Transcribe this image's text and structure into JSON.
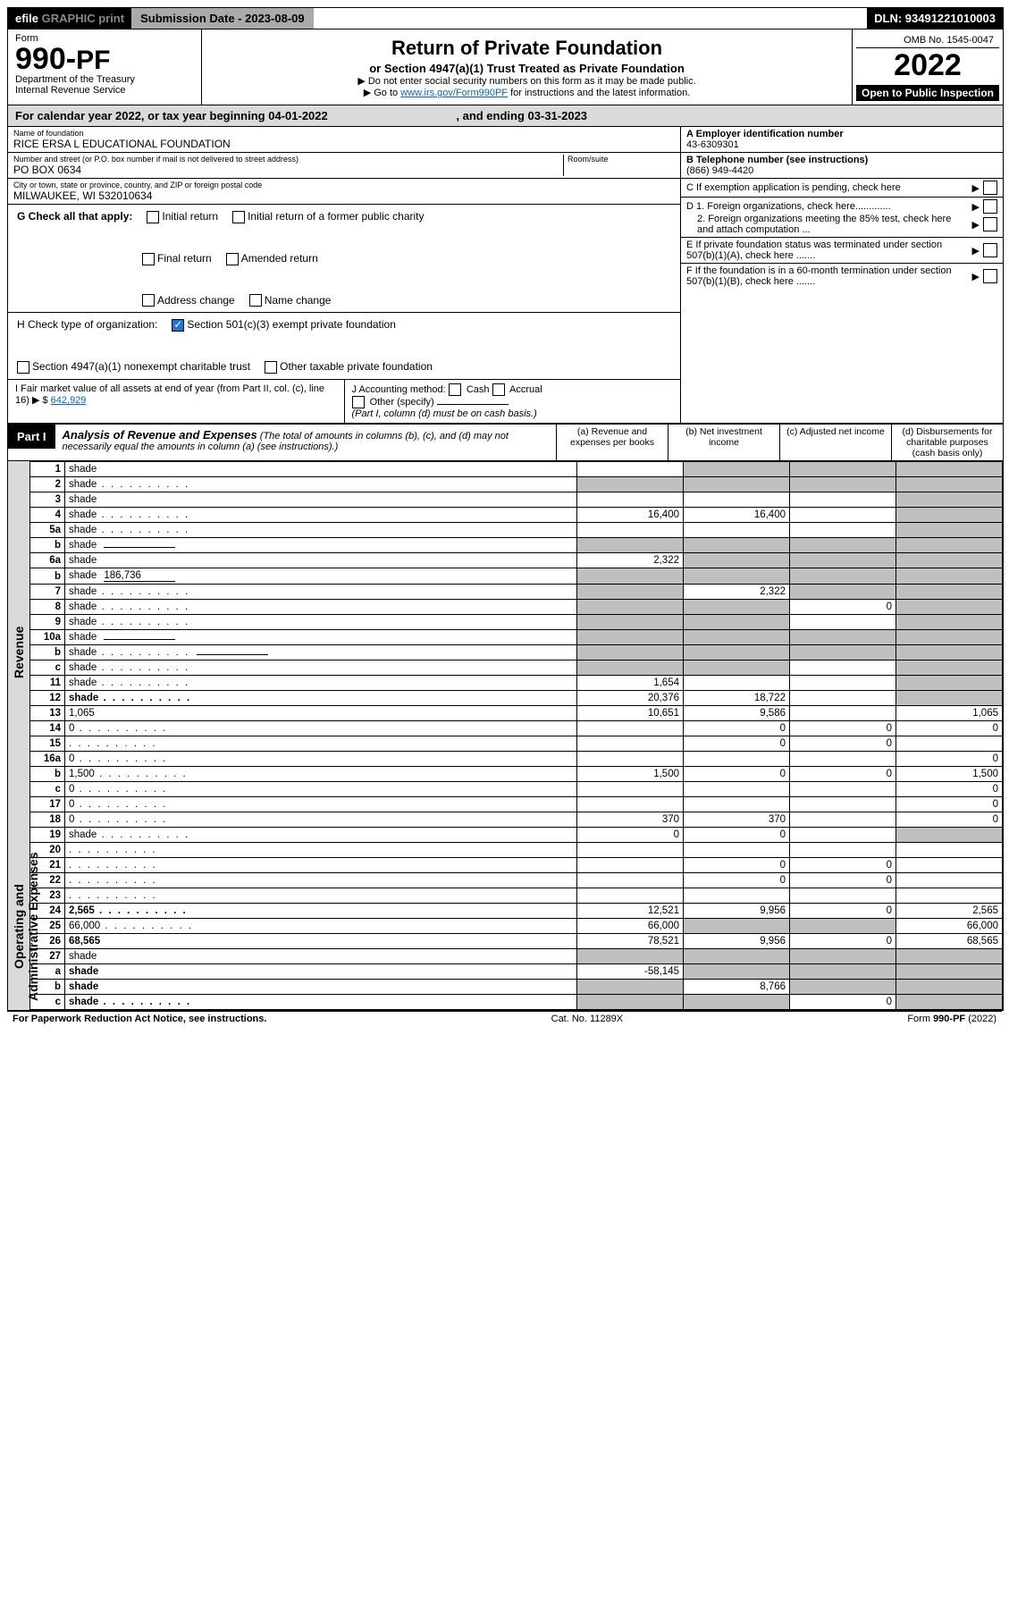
{
  "topbar": {
    "efile_prefix": "efile",
    "efile_suffix": "GRAPHIC print",
    "submission_label": "Submission Date - 2023-08-09",
    "dln": "DLN: 93491221010003"
  },
  "header": {
    "form_word": "Form",
    "form_no_a": "990-",
    "form_no_b": "PF",
    "dept1": "Department of the Treasury",
    "dept2": "Internal Revenue Service",
    "title": "Return of Private Foundation",
    "subtitle": "or Section 4947(a)(1) Trust Treated as Private Foundation",
    "note1": "▶ Do not enter social security numbers on this form as it may be made public.",
    "note2_pre": "▶ Go to ",
    "note2_link": "www.irs.gov/Form990PF",
    "note2_post": " for instructions and the latest information.",
    "omb": "OMB No. 1545-0047",
    "year": "2022",
    "open": "Open to Public Inspection"
  },
  "calyear": {
    "pre": "For calendar year 2022, or tax year beginning ",
    "begin": "04-01-2022",
    "mid": " , and ending ",
    "end": "03-31-2023"
  },
  "info": {
    "name_label": "Name of foundation",
    "name": "RICE ERSA L EDUCATIONAL FOUNDATION",
    "street_label": "Number and street (or P.O. box number if mail is not delivered to street address)",
    "street": "PO BOX 0634",
    "room_label": "Room/suite",
    "city_label": "City or town, state or province, country, and ZIP or foreign postal code",
    "city": "MILWAUKEE, WI  532010634",
    "a_label": "A Employer identification number",
    "a_val": "43-6309301",
    "b_label": "B Telephone number (see instructions)",
    "b_val": "(866) 949-4420",
    "c_label": "C If exemption application is pending, check here",
    "d1": "D 1. Foreign organizations, check here.............",
    "d2": "2. Foreign organizations meeting the 85% test, check here and attach computation ...",
    "e": "E If private foundation status was terminated under section 507(b)(1)(A), check here .......",
    "f": "F If the foundation is in a 60-month termination under section 507(b)(1)(B), check here .......",
    "g_label": "G Check all that apply:",
    "g_opts": [
      "Initial return",
      "Final return",
      "Address change",
      "Initial return of a former public charity",
      "Amended return",
      "Name change"
    ],
    "h_label": "H Check type of organization:",
    "h_501": "Section 501(c)(3) exempt private foundation",
    "h_4947": "Section 4947(a)(1) nonexempt charitable trust",
    "h_other": "Other taxable private foundation",
    "i_label": "I Fair market value of all assets at end of year (from Part II, col. (c), line 16)",
    "i_val": "642,929",
    "j_label": "J Accounting method:",
    "j_cash": "Cash",
    "j_accrual": "Accrual",
    "j_other": "Other (specify)",
    "j_note": "(Part I, column (d) must be on cash basis.)"
  },
  "part1": {
    "label": "Part I",
    "title": "Analysis of Revenue and Expenses",
    "title_note": "(The total of amounts in columns (b), (c), and (d) may not necessarily equal the amounts in column (a) (see instructions).)",
    "col_a": "(a) Revenue and expenses per books",
    "col_b": "(b) Net investment income",
    "col_c": "(c) Adjusted net income",
    "col_d": "(d) Disbursements for charitable purposes (cash basis only)",
    "side_rev": "Revenue",
    "side_exp": "Operating and Administrative Expenses"
  },
  "rows": [
    {
      "n": "1",
      "d": "shade",
      "a": "",
      "b": "shade",
      "c": "shade"
    },
    {
      "n": "2",
      "d": "shade",
      "a": "shade",
      "b": "shade",
      "c": "shade",
      "dotted": true
    },
    {
      "n": "3",
      "d": "shade",
      "a": "",
      "b": "",
      "c": ""
    },
    {
      "n": "4",
      "d": "shade",
      "a": "16,400",
      "b": "16,400",
      "c": "",
      "dotted": true
    },
    {
      "n": "5a",
      "d": "shade",
      "a": "",
      "b": "",
      "c": "",
      "dotted": true
    },
    {
      "n": "b",
      "d": "shade",
      "a": "shade",
      "b": "shade",
      "c": "shade",
      "inline": true
    },
    {
      "n": "6a",
      "d": "shade",
      "a": "2,322",
      "b": "shade",
      "c": "shade"
    },
    {
      "n": "b",
      "d": "shade",
      "a": "shade",
      "b": "shade",
      "c": "shade",
      "inline": true,
      "inline_val": "186,736"
    },
    {
      "n": "7",
      "d": "shade",
      "a": "shade",
      "b": "2,322",
      "c": "shade",
      "dotted": true
    },
    {
      "n": "8",
      "d": "shade",
      "a": "shade",
      "b": "shade",
      "c": "0",
      "dotted": true
    },
    {
      "n": "9",
      "d": "shade",
      "a": "shade",
      "b": "shade",
      "c": "",
      "dotted": true
    },
    {
      "n": "10a",
      "d": "shade",
      "a": "shade",
      "b": "shade",
      "c": "shade",
      "inline": true
    },
    {
      "n": "b",
      "d": "shade",
      "a": "shade",
      "b": "shade",
      "c": "shade",
      "inline": true,
      "dotted": true
    },
    {
      "n": "c",
      "d": "shade",
      "a": "shade",
      "b": "shade",
      "c": "",
      "dotted": true
    },
    {
      "n": "11",
      "d": "shade",
      "a": "1,654",
      "b": "",
      "c": "",
      "dotted": true
    },
    {
      "n": "12",
      "d": "shade",
      "a": "20,376",
      "b": "18,722",
      "c": "",
      "bold": true,
      "dotted": true
    },
    {
      "n": "13",
      "d": "1,065",
      "a": "10,651",
      "b": "9,586",
      "c": ""
    },
    {
      "n": "14",
      "d": "0",
      "a": "",
      "b": "0",
      "c": "0",
      "dotted": true
    },
    {
      "n": "15",
      "d": "",
      "a": "",
      "b": "0",
      "c": "0",
      "dotted": true
    },
    {
      "n": "16a",
      "d": "0",
      "a": "",
      "b": "",
      "c": "",
      "dotted": true
    },
    {
      "n": "b",
      "d": "1,500",
      "a": "1,500",
      "b": "0",
      "c": "0",
      "dotted": true
    },
    {
      "n": "c",
      "d": "0",
      "a": "",
      "b": "",
      "c": "",
      "dotted": true
    },
    {
      "n": "17",
      "d": "0",
      "a": "",
      "b": "",
      "c": "",
      "dotted": true
    },
    {
      "n": "18",
      "d": "0",
      "a": "370",
      "b": "370",
      "c": "",
      "dotted": true
    },
    {
      "n": "19",
      "d": "shade",
      "a": "0",
      "b": "0",
      "c": "",
      "dotted": true
    },
    {
      "n": "20",
      "d": "",
      "a": "",
      "b": "",
      "c": "",
      "dotted": true
    },
    {
      "n": "21",
      "d": "",
      "a": "",
      "b": "0",
      "c": "0",
      "dotted": true
    },
    {
      "n": "22",
      "d": "",
      "a": "",
      "b": "0",
      "c": "0",
      "dotted": true
    },
    {
      "n": "23",
      "d": "",
      "a": "",
      "b": "",
      "c": "",
      "dotted": true
    },
    {
      "n": "24",
      "d": "2,565",
      "a": "12,521",
      "b": "9,956",
      "c": "0",
      "bold": true,
      "dotted": true
    },
    {
      "n": "25",
      "d": "66,000",
      "a": "66,000",
      "b": "shade",
      "c": "shade",
      "dotted": true
    },
    {
      "n": "26",
      "d": "68,565",
      "a": "78,521",
      "b": "9,956",
      "c": "0",
      "bold": true
    },
    {
      "n": "27",
      "d": "shade",
      "a": "shade",
      "b": "shade",
      "c": "shade"
    },
    {
      "n": "a",
      "d": "shade",
      "a": "-58,145",
      "b": "shade",
      "c": "shade",
      "bold": true
    },
    {
      "n": "b",
      "d": "shade",
      "a": "shade",
      "b": "8,766",
      "c": "shade",
      "bold": true
    },
    {
      "n": "c",
      "d": "shade",
      "a": "shade",
      "b": "shade",
      "c": "0",
      "bold": true,
      "dotted": true
    }
  ],
  "footer": {
    "left": "For Paperwork Reduction Act Notice, see instructions.",
    "mid": "Cat. No. 11289X",
    "right": "Form 990-PF (2022)"
  }
}
